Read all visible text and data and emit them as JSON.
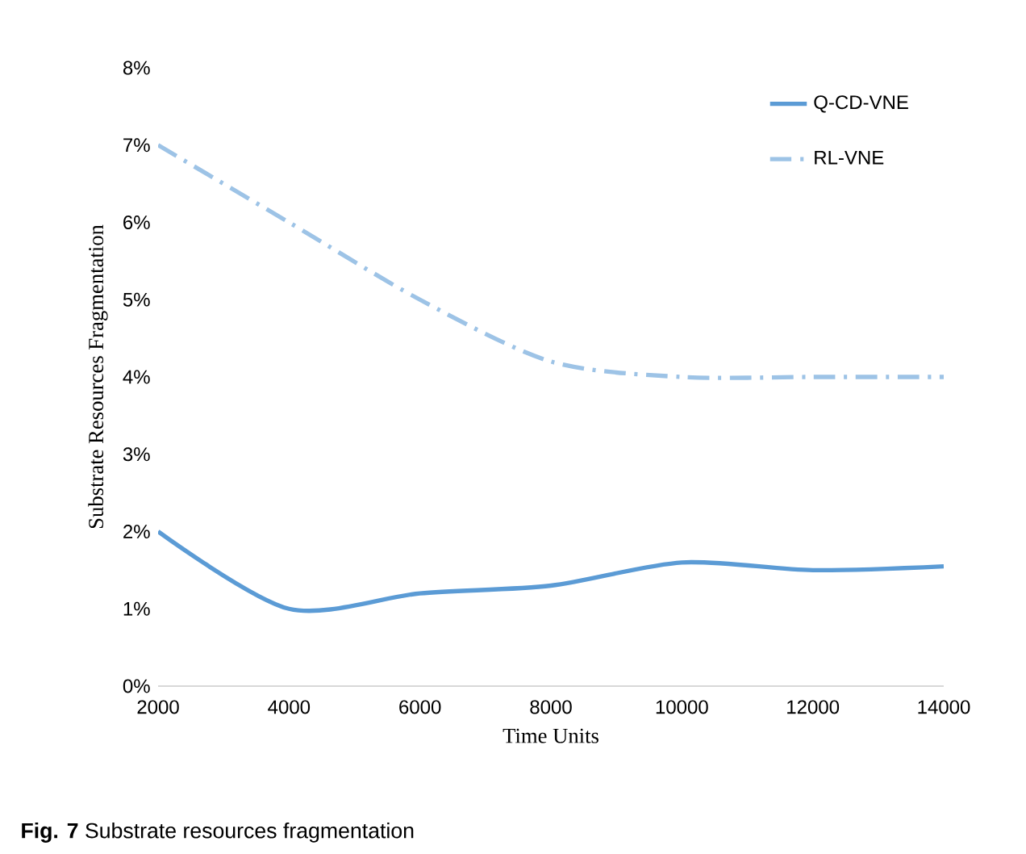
{
  "chart_data": {
    "type": "line",
    "xlabel": "Time Units",
    "ylabel": "Substrate Resources Fragmentation",
    "x": [
      2000,
      4000,
      6000,
      8000,
      10000,
      12000,
      14000
    ],
    "series": [
      {
        "name": "Q-CD-VNE",
        "color": "#5b9bd5",
        "line_style": "solid",
        "values": [
          2.0,
          1.0,
          1.2,
          1.3,
          1.6,
          1.5,
          1.55
        ]
      },
      {
        "name": "RL-VNE",
        "color": "#9dc3e6",
        "line_style": "dashdot",
        "values": [
          7.0,
          6.0,
          5.0,
          4.2,
          4.0,
          4.0,
          4.0
        ]
      }
    ],
    "xlim": [
      2000,
      14000
    ],
    "xticks": [
      2000,
      4000,
      6000,
      8000,
      10000,
      12000,
      14000
    ],
    "ylim": [
      0,
      8
    ],
    "yticks": [
      {
        "value": 0,
        "label": "0%"
      },
      {
        "value": 1,
        "label": "1%"
      },
      {
        "value": 2,
        "label": "2%"
      },
      {
        "value": 3,
        "label": "3%"
      },
      {
        "value": 4,
        "label": "4%"
      },
      {
        "value": 5,
        "label": "5%"
      },
      {
        "value": 6,
        "label": "6%"
      },
      {
        "value": 7,
        "label": "7%"
      },
      {
        "value": 8,
        "label": "8%"
      }
    ],
    "grid": false,
    "legend": "top right",
    "marker": "none",
    "annotations": [
      "**Fig. 7** Substrate resources fragmentation"
    ]
  }
}
